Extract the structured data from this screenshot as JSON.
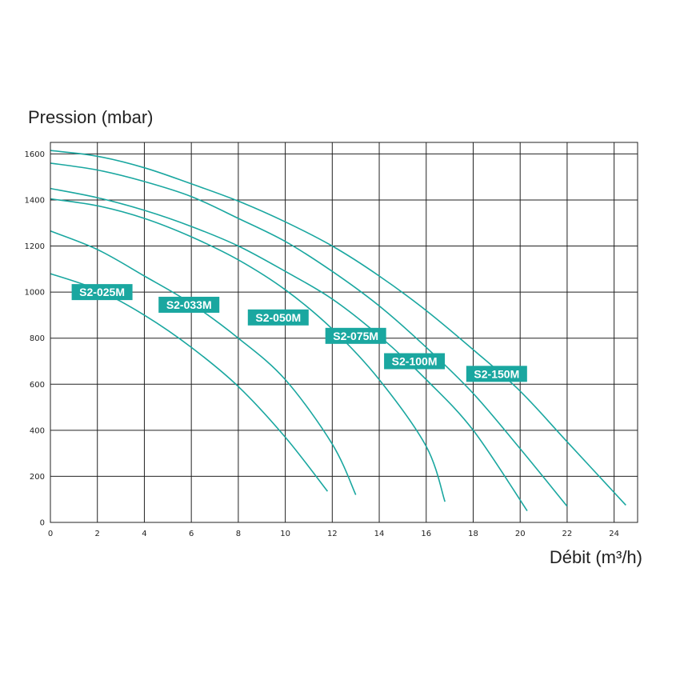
{
  "chart_data": {
    "type": "line",
    "title": "",
    "ylabel": "Pression (mbar)",
    "xlabel": "Débit (m³/h)",
    "xlim": [
      0,
      25
    ],
    "ylim": [
      0,
      1650
    ],
    "xticks": [
      0,
      2,
      4,
      6,
      8,
      10,
      12,
      14,
      16,
      18,
      20,
      22,
      24
    ],
    "yticks": [
      0,
      200,
      400,
      600,
      800,
      1000,
      1200,
      1400,
      1600
    ],
    "grid": true,
    "line_color": "#1aa7a0",
    "label_bg_color": "#1aa7a0",
    "label_text_color": "#ffffff",
    "series": [
      {
        "name": "S2-025M",
        "x": [
          0,
          2,
          4,
          6,
          8,
          10,
          11.8
        ],
        "y": [
          1080,
          1010,
          900,
          760,
          590,
          370,
          135
        ]
      },
      {
        "name": "S2-033M",
        "x": [
          0,
          2,
          4,
          6,
          8,
          10,
          12,
          13
        ],
        "y": [
          1265,
          1185,
          1070,
          950,
          800,
          620,
          340,
          120
        ]
      },
      {
        "name": "S2-050M",
        "x": [
          0,
          2,
          4,
          6,
          8,
          10,
          12,
          14,
          16,
          16.8
        ],
        "y": [
          1405,
          1375,
          1320,
          1240,
          1140,
          1010,
          840,
          620,
          330,
          90
        ]
      },
      {
        "name": "S2-075M",
        "x": [
          0,
          2,
          4,
          6,
          8,
          10,
          12,
          14,
          16,
          18,
          20.3
        ],
        "y": [
          1450,
          1410,
          1355,
          1285,
          1200,
          1090,
          970,
          810,
          620,
          400,
          50
        ]
      },
      {
        "name": "S2-100M",
        "x": [
          0,
          2,
          4,
          6,
          8,
          10,
          12,
          14,
          16,
          18,
          20,
          22
        ],
        "y": [
          1560,
          1530,
          1480,
          1415,
          1320,
          1220,
          1090,
          940,
          760,
          560,
          320,
          70
        ]
      },
      {
        "name": "S2-150M",
        "x": [
          0,
          2,
          4,
          6,
          8,
          10,
          12,
          14,
          16,
          18,
          20,
          22,
          24.5
        ],
        "y": [
          1615,
          1590,
          1540,
          1470,
          1395,
          1305,
          1200,
          1070,
          920,
          750,
          570,
          350,
          75
        ]
      }
    ]
  }
}
